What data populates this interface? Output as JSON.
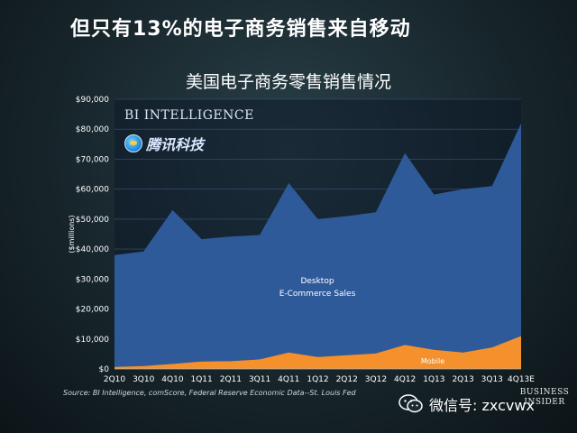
{
  "slide_title": "但只有13%的电子商务销售来自移动",
  "source": "Source: BI Intelligence, comScore, Federal Reserve Economic Data--St. Louis Fed",
  "logos": {
    "bi_intelligence": "BI INTELLIGENCE",
    "tencent": "腾讯科技",
    "wechat": "微信号: zxcvwx",
    "business_insider": [
      "BUSINESS",
      "INSIDER"
    ]
  },
  "colors": {
    "desktop": "#2f5a9a",
    "mobile": "#f4912d",
    "axis_text": "#ffffff",
    "gridline": "#4a6a9a"
  },
  "chart_data": {
    "type": "area",
    "title": "美国电子商务零售销售情况",
    "ylabel": "($millions)",
    "xlabel": "",
    "ylim": [
      0,
      90000
    ],
    "yticks": [
      "$0",
      "$10,000",
      "$20,000",
      "$30,000",
      "$40,000",
      "$50,000",
      "$60,000",
      "$70,000",
      "$80,000",
      "$90,000"
    ],
    "categories": [
      "2Q10",
      "3Q10",
      "4Q10",
      "1Q11",
      "2Q11",
      "3Q11",
      "4Q11",
      "1Q12",
      "2Q12",
      "3Q12",
      "4Q12",
      "1Q13",
      "2Q13",
      "3Q13",
      "4Q13E"
    ],
    "stacked": true,
    "series": [
      {
        "name": "Mobile",
        "values": [
          700,
          1000,
          1700,
          2500,
          2600,
          3200,
          5500,
          4000,
          4600,
          5200,
          8000,
          6400,
          5500,
          7200,
          11000
        ]
      },
      {
        "name": "Desktop E-Commerce Sales",
        "values": [
          37300,
          38200,
          51300,
          40800,
          41600,
          41500,
          56500,
          46000,
          46400,
          47100,
          64000,
          51800,
          54500,
          53800,
          71000
        ]
      }
    ],
    "labels": {
      "desktop": [
        "Desktop",
        "E-Commerce Sales"
      ],
      "mobile": "Mobile"
    },
    "grid": true,
    "legend": "none"
  }
}
